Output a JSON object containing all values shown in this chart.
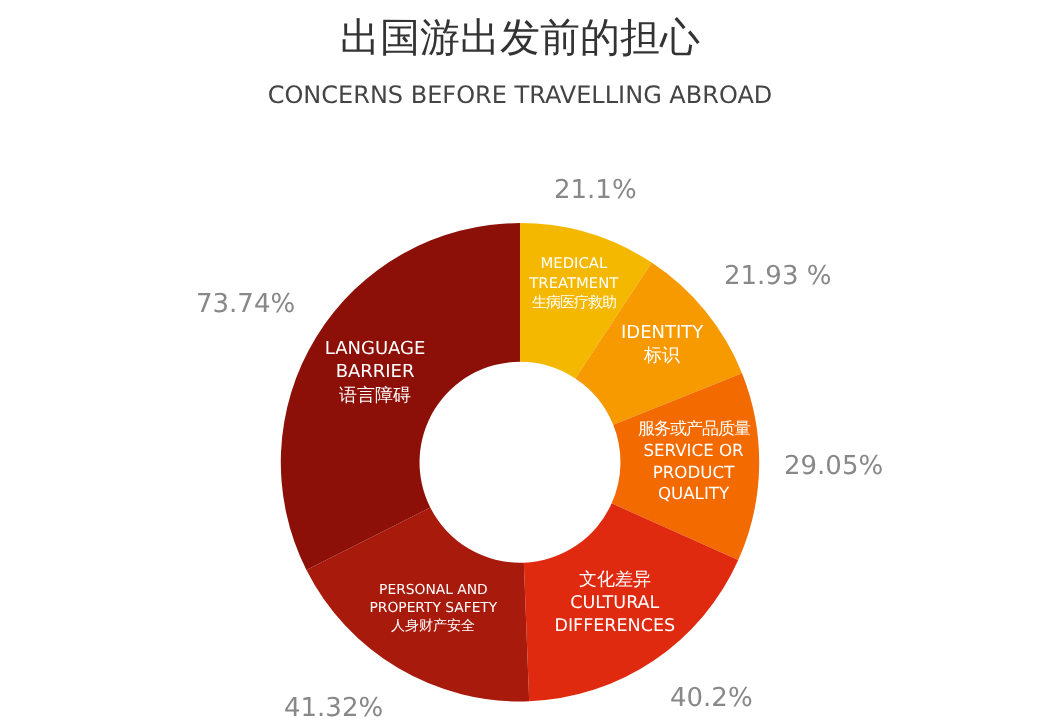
{
  "chart_data": {
    "type": "donut",
    "title": "出国游出发前的担心",
    "subtitle": "CONCERNS BEFORE TRAVELLING ABROAD",
    "categories": [
      "MEDICAL\nTREATMENT\n生病医疗救助",
      "IDENTITY\n标识",
      "服务或产品质量\nSERVICE OR\nPRODUCT\nQUALITY",
      "文化差异\nCULTURAL\nDIFFERENCES",
      "PERSONAL AND\nPROPERTY SAFETY\n人身财产安全",
      "LANGUAGE\nBARRIER\n语言障碍"
    ],
    "values": [
      21.1,
      21.93,
      29.05,
      40.2,
      41.32,
      73.74
    ],
    "value_labels": [
      "21.1%",
      "21.93 %",
      "29.05%",
      "40.2%",
      "41.32%",
      "73.74%"
    ],
    "colors": [
      "#f5b800",
      "#f79a00",
      "#f26a00",
      "#e02a10",
      "#a81a0c",
      "#8c1008"
    ]
  }
}
